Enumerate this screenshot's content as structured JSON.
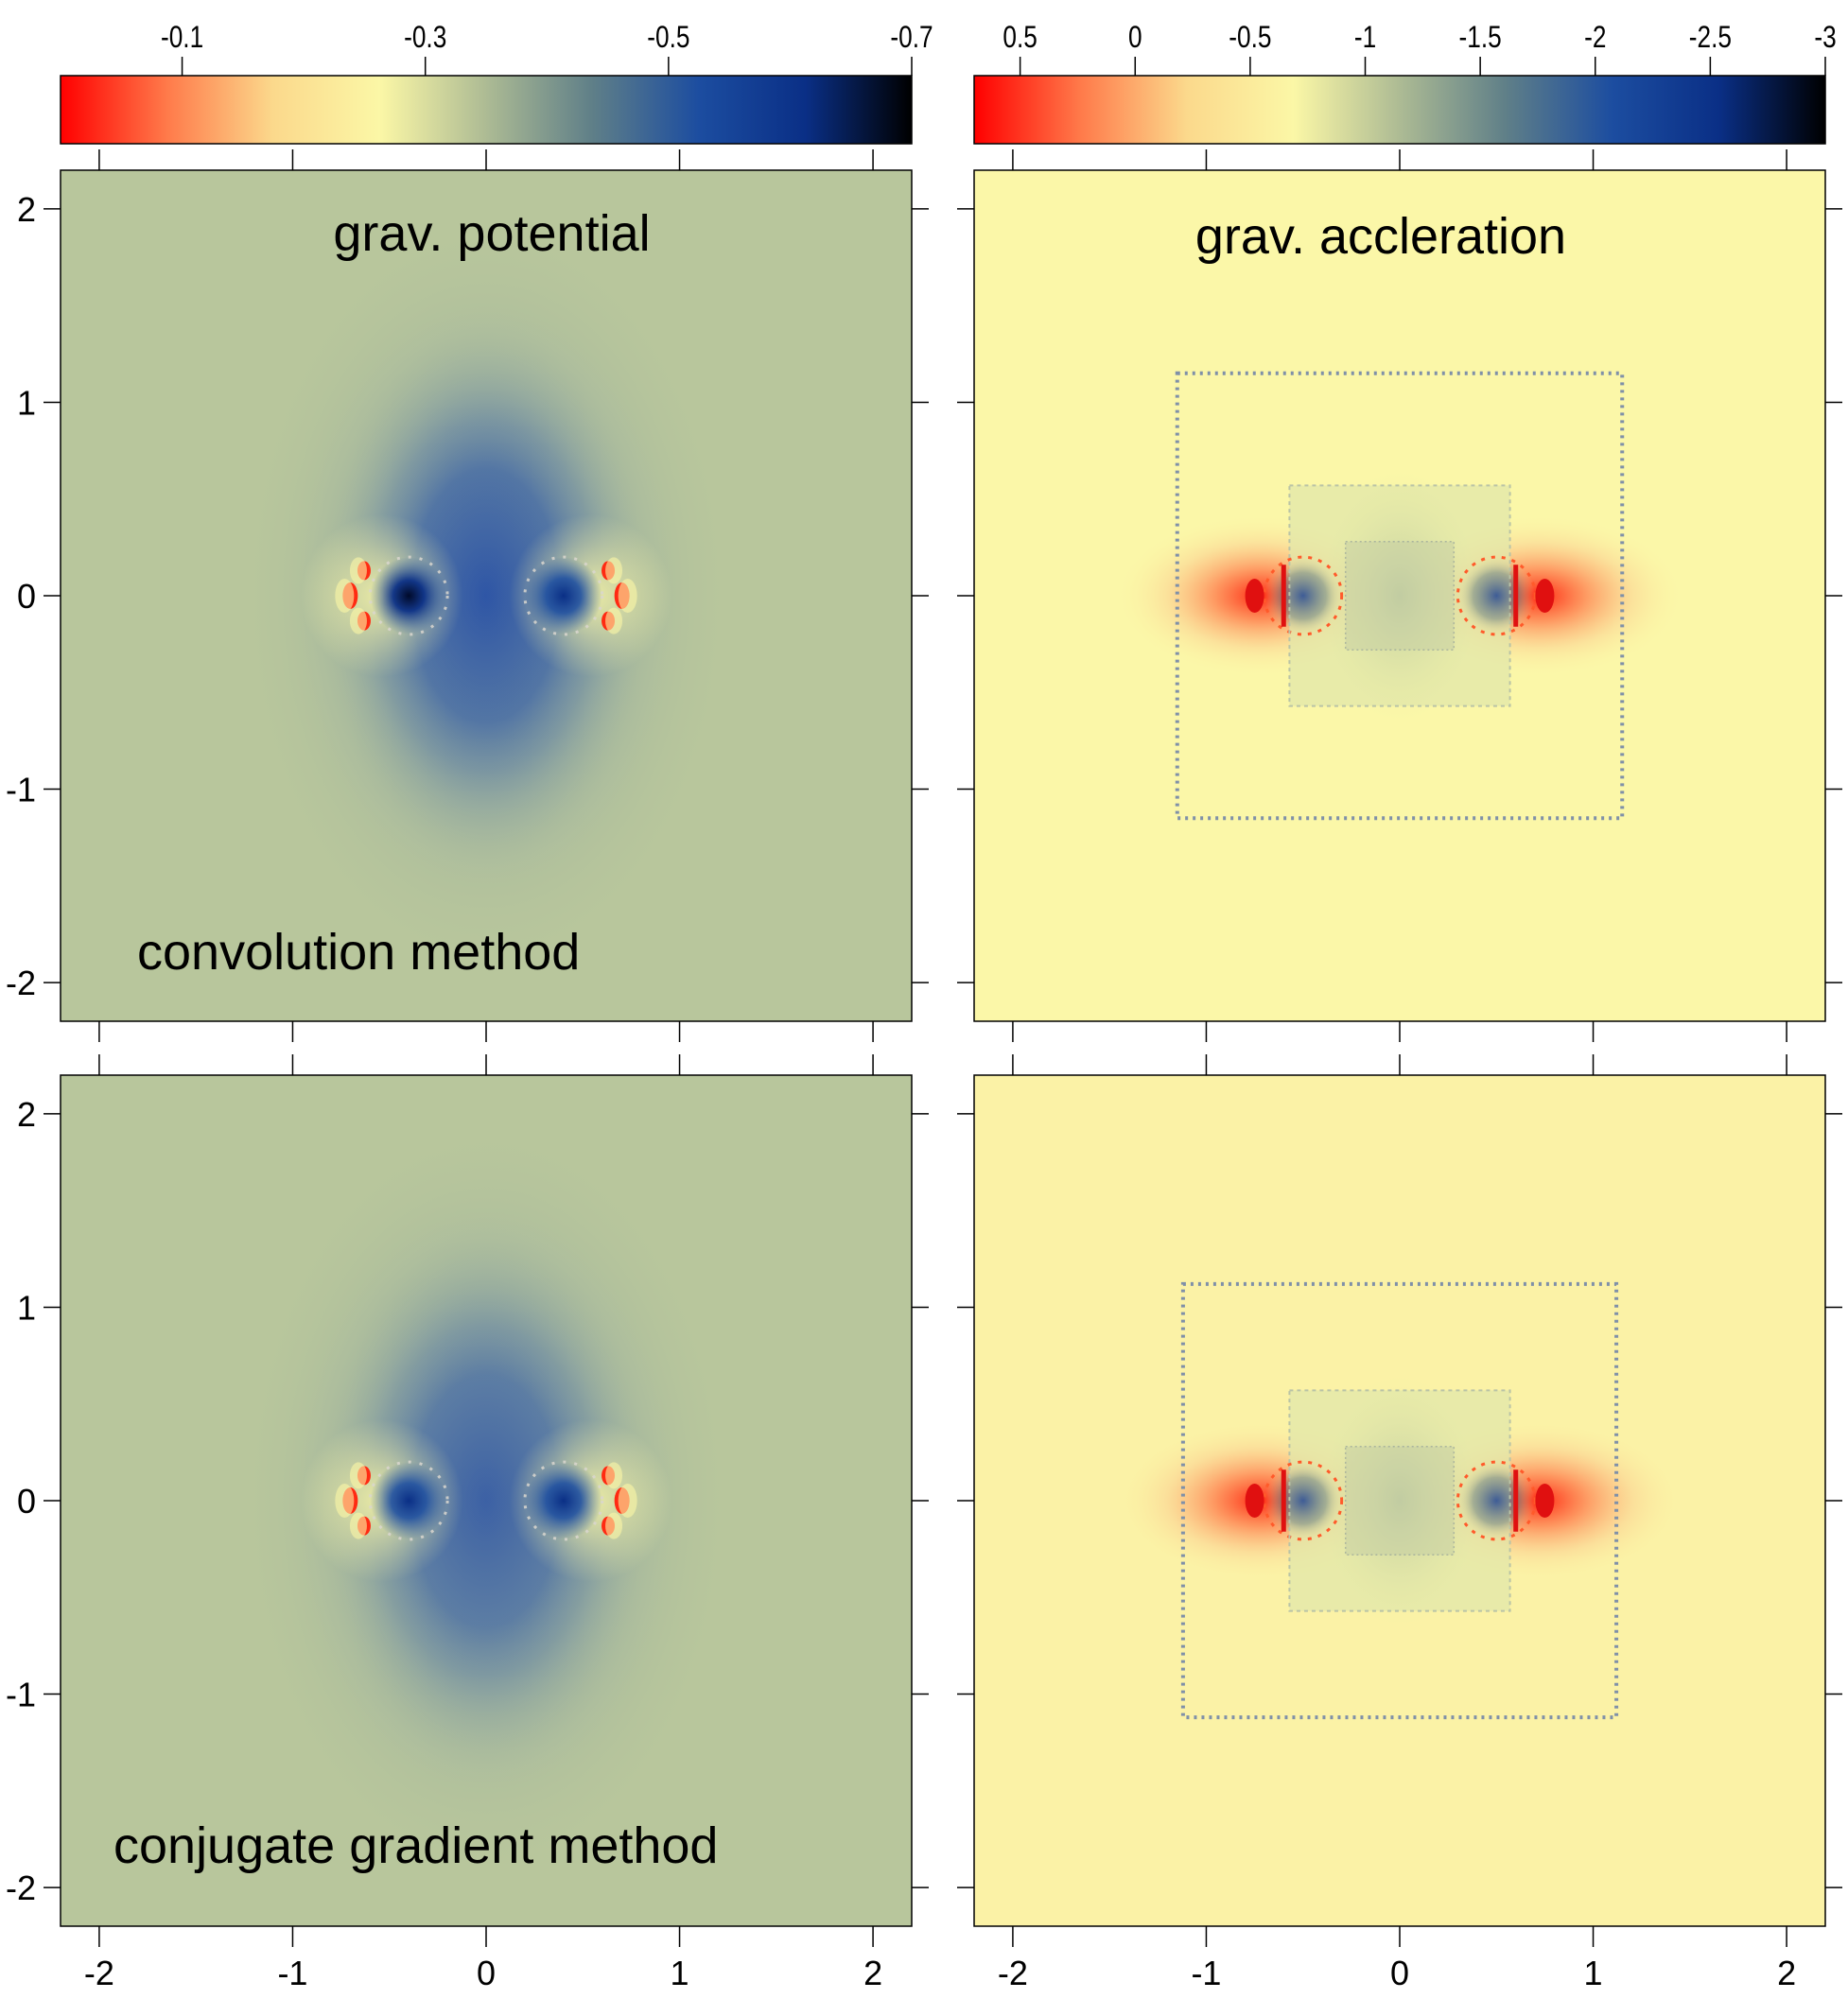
{
  "chart_data": [
    {
      "type": "heatmap",
      "panel": "top-left",
      "annotations": [
        "grav. potential",
        "convolution method"
      ],
      "xlim": [
        -2.2,
        2.2
      ],
      "ylim": [
        -2.2,
        2.2
      ],
      "xticks": [
        -2,
        -1,
        0,
        1,
        2
      ],
      "yticks": [
        -2,
        -1,
        0,
        1,
        2
      ],
      "ytick_labels": [
        "-2",
        "-1",
        "0",
        "1",
        "2"
      ],
      "xtick_labels": [],
      "colorbar": {
        "position": "top",
        "range": [
          0,
          -0.7
        ],
        "ticks": [
          -0.1,
          -0.3,
          -0.5,
          -0.7
        ],
        "tick_labels": [
          "-0.1",
          "-0.3",
          "-0.5",
          "-0.7"
        ],
        "colormap": [
          "#ff0000",
          "#ff7a4a",
          "#fbd98c",
          "#fbf7a6",
          "#adbb94",
          "#5f7f88",
          "#1c4da0",
          "#0a2f86",
          "#000000"
        ]
      },
      "background_color": "#b8c69c",
      "features": [
        "two ring-shaped minima at x = -0.4 and x = +0.4 along y = 0",
        "minimum value about -0.7 near x = -0.4, y = 0",
        "diffuse low region extending vertically through x = 0"
      ]
    },
    {
      "type": "heatmap",
      "panel": "top-right",
      "annotations": [
        "grav. accleration"
      ],
      "xlim": [
        -2.2,
        2.2
      ],
      "ylim": [
        -2.2,
        2.2
      ],
      "xticks": [
        -2,
        -1,
        0,
        1,
        2
      ],
      "yticks": [
        -2,
        -1,
        0,
        1,
        2
      ],
      "xtick_labels": [],
      "ytick_labels": [],
      "colorbar": {
        "position": "top",
        "range": [
          0.7,
          -3
        ],
        "ticks": [
          0.5,
          0,
          -0.5,
          -1,
          -1.5,
          -2,
          -2.5,
          -3
        ],
        "tick_labels": [
          "0.5",
          "0",
          "-0.5",
          "-1",
          "-1.5",
          "-2",
          "-2.5",
          "-3"
        ],
        "colormap": [
          "#ff0000",
          "#ff7a4a",
          "#fbd98c",
          "#fbf7a6",
          "#adbb94",
          "#5f7f88",
          "#1c4da0",
          "#0a2f86",
          "#000000"
        ]
      },
      "background_color": "#fbf7a8",
      "features": [
        "nested refinement boxes at ±1.15 and ±0.57",
        "strong positive values near x = ±0.75, y = 0",
        "small inner box from -0.28 to 0.28 in x, ±0.28 in y"
      ]
    },
    {
      "type": "heatmap",
      "panel": "bottom-left",
      "annotations": [
        "conjugate gradient method"
      ],
      "xlim": [
        -2.2,
        2.2
      ],
      "ylim": [
        -2.2,
        2.2
      ],
      "xticks": [
        -2,
        -1,
        0,
        1,
        2
      ],
      "yticks": [
        -2,
        -1,
        0,
        1,
        2
      ],
      "xtick_labels": [
        "-2",
        "-1",
        "0",
        "1",
        "2"
      ],
      "ytick_labels": [
        "-2",
        "-1",
        "0",
        "1",
        "2"
      ],
      "colorbar": null,
      "background_color": "#b8c69c",
      "features": [
        "two ring-shaped minima at x = -0.4 and x = +0.4 along y = 0",
        "minimum value about -0.6 near x = -0.4, y = 0"
      ]
    },
    {
      "type": "heatmap",
      "panel": "bottom-right",
      "annotations": [],
      "xlim": [
        -2.2,
        2.2
      ],
      "ylim": [
        -2.2,
        2.2
      ],
      "xticks": [
        -2,
        -1,
        0,
        1,
        2
      ],
      "yticks": [
        -2,
        -1,
        0,
        1,
        2
      ],
      "xtick_labels": [
        "-2",
        "-1",
        "0",
        "1",
        "2"
      ],
      "ytick_labels": [],
      "colorbar": null,
      "background_color": "#fbf2a6",
      "features": [
        "nested refinement boxes at ±1.12 and ±0.57",
        "strong positive values near x = ±0.75, y = 0"
      ]
    }
  ]
}
